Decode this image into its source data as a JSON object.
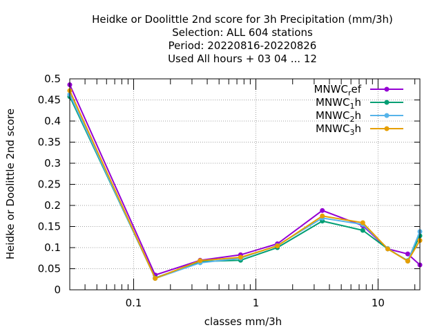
{
  "chart_data": {
    "type": "line",
    "title_lines": [
      "Heidke or Doolittle 2nd score  for 3h Precipitation (mm/3h)",
      "Selection: ALL    604 stations",
      "Period: 20220816-20220826",
      "Used  All hours + 03 04 ... 12"
    ],
    "xlabel": "classes mm/3h",
    "ylabel": "Heidke or Doolittle 2nd score",
    "x_scale": "log",
    "xlim": [
      0.03,
      22
    ],
    "ylim": [
      0,
      0.5
    ],
    "x_ticks": [
      {
        "value": 0.1,
        "label": "0.1"
      },
      {
        "value": 1,
        "label": "1"
      },
      {
        "value": 10,
        "label": "10"
      }
    ],
    "y_ticks": [
      {
        "value": 0,
        "label": "0"
      },
      {
        "value": 0.05,
        "label": "0.05"
      },
      {
        "value": 0.1,
        "label": "0.1"
      },
      {
        "value": 0.15,
        "label": "0.15"
      },
      {
        "value": 0.2,
        "label": "0.2"
      },
      {
        "value": 0.25,
        "label": "0.25"
      },
      {
        "value": 0.3,
        "label": "0.3"
      },
      {
        "value": 0.35,
        "label": "0.35"
      },
      {
        "value": 0.4,
        "label": "0.4"
      },
      {
        "value": 0.45,
        "label": "0.45"
      },
      {
        "value": 0.5,
        "label": "0.5"
      }
    ],
    "grid": true,
    "legend_position": "top-right",
    "x": [
      0.03,
      0.15,
      0.35,
      0.75,
      1.5,
      3.5,
      7.5,
      12,
      17.5,
      22
    ],
    "series": [
      {
        "name": "MNWC",
        "subscript": "r",
        "suffix": "ef",
        "color": "#9400d3",
        "values": [
          0.486,
          0.035,
          0.07,
          0.083,
          0.109,
          0.188,
          0.152,
          0.097,
          0.085,
          0.059
        ]
      },
      {
        "name": "MNWC",
        "subscript": "1",
        "suffix": "h",
        "color": "#009e73",
        "values": [
          0.458,
          0.028,
          0.067,
          0.07,
          0.1,
          0.163,
          0.141,
          0.097,
          0.069,
          0.128
        ]
      },
      {
        "name": "MNWC",
        "subscript": "2",
        "suffix": "h",
        "color": "#56b4e9",
        "values": [
          0.463,
          0.027,
          0.064,
          0.075,
          0.105,
          0.17,
          0.155,
          0.098,
          0.068,
          0.138
        ]
      },
      {
        "name": "MNWC",
        "subscript": "3",
        "suffix": "h",
        "color": "#e69f00",
        "values": [
          0.472,
          0.027,
          0.069,
          0.077,
          0.104,
          0.175,
          0.159,
          0.097,
          0.068,
          0.117
        ]
      }
    ]
  }
}
